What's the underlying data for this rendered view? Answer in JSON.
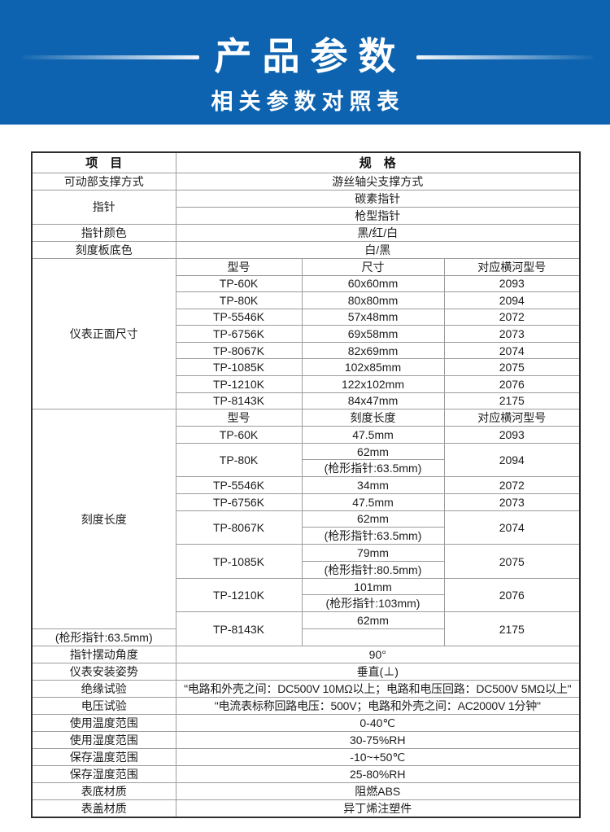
{
  "banner": {
    "title": "产品参数",
    "subtitle": "相关参数对照表"
  },
  "colors": {
    "banner_blue": "#0d63af",
    "table_header_bg": "#cfe8f6",
    "row_band_gray": "#e3e3e3",
    "outer_border": "#2e2e2e",
    "inner_border": "#9c9c9c"
  },
  "table": {
    "rows": [
      {
        "header": true,
        "cells": [
          {
            "t": "项　目",
            "bg": "h"
          },
          {
            "t": "规　格",
            "cs": 3,
            "bg": "h"
          }
        ]
      },
      {
        "cells": [
          {
            "t": "可动部支撑方式"
          },
          {
            "t": "游丝轴尖支撑方式",
            "cs": 3
          }
        ]
      },
      {
        "cells": [
          {
            "t": "指针",
            "rs": 2
          },
          {
            "t": "碳素指针",
            "cs": 3,
            "bg": "g"
          }
        ]
      },
      {
        "cells": [
          {
            "t": "枪型指针",
            "cs": 3
          }
        ]
      },
      {
        "cells": [
          {
            "t": "指针颜色"
          },
          {
            "t": "黑/红/白",
            "cs": 3,
            "bg": "g"
          }
        ]
      },
      {
        "cells": [
          {
            "t": "刻度板底色"
          },
          {
            "t": "白/黑",
            "cs": 3
          }
        ]
      },
      {
        "cells": [
          {
            "t": "仪表正面尺寸",
            "rs": 9
          },
          {
            "t": "型号",
            "bg": "g"
          },
          {
            "t": "尺寸",
            "bg": "g"
          },
          {
            "t": "对应横河型号",
            "bg": "g"
          }
        ]
      },
      {
        "cells": [
          {
            "t": "TP-60K"
          },
          {
            "t": "60x60mm"
          },
          {
            "t": "2093"
          }
        ]
      },
      {
        "cells": [
          {
            "t": "TP-80K",
            "bg": "g"
          },
          {
            "t": "80x80mm",
            "bg": "g"
          },
          {
            "t": "2094",
            "bg": "g"
          }
        ]
      },
      {
        "cells": [
          {
            "t": "TP-5546K"
          },
          {
            "t": "57x48mm"
          },
          {
            "t": "2072"
          }
        ]
      },
      {
        "cells": [
          {
            "t": "TP-6756K",
            "bg": "g"
          },
          {
            "t": "69x58mm",
            "bg": "g"
          },
          {
            "t": "2073",
            "bg": "g"
          }
        ]
      },
      {
        "cells": [
          {
            "t": "TP-8067K"
          },
          {
            "t": "82x69mm"
          },
          {
            "t": "2074"
          }
        ]
      },
      {
        "cells": [
          {
            "t": "TP-1085K",
            "bg": "g"
          },
          {
            "t": "102x85mm",
            "bg": "g"
          },
          {
            "t": "2075",
            "bg": "g"
          }
        ]
      },
      {
        "cells": [
          {
            "t": "TP-1210K"
          },
          {
            "t": "122x102mm"
          },
          {
            "t": "2076"
          }
        ]
      },
      {
        "cells": [
          {
            "t": "TP-8143K",
            "bg": "g"
          },
          {
            "t": "84x47mm",
            "bg": "g"
          },
          {
            "t": "2175",
            "bg": "g"
          }
        ]
      },
      {
        "cells": [
          {
            "t": "刻度长度",
            "rs": 13
          },
          {
            "t": "型号"
          },
          {
            "t": "刻度长度"
          },
          {
            "t": "对应横河型号"
          }
        ]
      },
      {
        "cells": [
          {
            "t": "TP-60K",
            "bg": "g"
          },
          {
            "t": "47.5mm",
            "bg": "g"
          },
          {
            "t": "2093",
            "bg": "g"
          }
        ]
      },
      {
        "cells": [
          {
            "t": "TP-80K",
            "rs": 2
          },
          {
            "t": "62mm"
          },
          {
            "t": "2094",
            "rs": 2
          }
        ]
      },
      {
        "cells": [
          {
            "t": "(枪形指针:63.5mm)",
            "bg": "g"
          }
        ]
      },
      {
        "cells": [
          {
            "t": "TP-5546K"
          },
          {
            "t": "34mm"
          },
          {
            "t": "2072"
          }
        ]
      },
      {
        "cells": [
          {
            "t": "TP-6756K"
          },
          {
            "t": "47.5mm",
            "bg": "g"
          },
          {
            "t": "2073"
          }
        ]
      },
      {
        "cells": [
          {
            "t": "TP-8067K",
            "rs": 2
          },
          {
            "t": "62mm"
          },
          {
            "t": "2074",
            "rs": 2
          }
        ]
      },
      {
        "cells": [
          {
            "t": "(枪形指针:63.5mm)",
            "bg": "g"
          }
        ]
      },
      {
        "cells": [
          {
            "t": "TP-1085K",
            "rs": 2
          },
          {
            "t": "79mm"
          },
          {
            "t": "2075",
            "rs": 2
          }
        ]
      },
      {
        "cells": [
          {
            "t": "(枪形指针:80.5mm)",
            "bg": "g"
          }
        ]
      },
      {
        "cells": [
          {
            "t": "TP-1210K",
            "rs": 2
          },
          {
            "t": "101mm"
          },
          {
            "t": "2076",
            "rs": 2
          }
        ]
      },
      {
        "cells": [
          {
            "t": "(枪形指针:103mm)",
            "bg": "g"
          }
        ]
      },
      {
        "cells": [
          {
            "t": "TP-8143K",
            "rs": 2
          },
          {
            "t": "62mm"
          },
          {
            "t": "2175",
            "rs": 2
          }
        ]
      },
      {
        "cells": [
          {
            "t": "(枪形指针:63.5mm)",
            "bg": "g"
          }
        ]
      },
      {
        "cells": [
          {
            "t": "指针摆动角度"
          },
          {
            "t": "90°",
            "cs": 3
          }
        ]
      },
      {
        "cells": [
          {
            "t": "仪表安装姿势",
            "bg": "g"
          },
          {
            "t": "垂直(⊥)",
            "cs": 3,
            "bg": "g"
          }
        ]
      },
      {
        "cells": [
          {
            "t": "绝缘试验"
          },
          {
            "t": "\"电路和外壳之间：DC500V 10MΩ以上；电路和电压回路：DC500V 5MΩ以上\"",
            "cs": 3,
            "sm": true
          }
        ]
      },
      {
        "cells": [
          {
            "t": "电压试验",
            "bg": "g"
          },
          {
            "t": "\"电流表标称回路电压：500V；电路和外壳之间：AC2000V 1分钟\"",
            "cs": 3,
            "bg": "g",
            "sm": true
          }
        ]
      },
      {
        "cells": [
          {
            "t": "使用温度范围"
          },
          {
            "t": "0-40℃",
            "cs": 3
          }
        ]
      },
      {
        "cells": [
          {
            "t": "使用湿度范围",
            "bg": "g"
          },
          {
            "t": "30-75%RH",
            "cs": 3,
            "bg": "g"
          }
        ]
      },
      {
        "cells": [
          {
            "t": "保存温度范围"
          },
          {
            "t": "-10~+50℃",
            "cs": 3
          }
        ]
      },
      {
        "cells": [
          {
            "t": "保存湿度范围",
            "bg": "g"
          },
          {
            "t": "25-80%RH",
            "cs": 3,
            "bg": "g"
          }
        ]
      },
      {
        "cells": [
          {
            "t": "表底材质"
          },
          {
            "t": "阻燃ABS",
            "cs": 3
          }
        ]
      },
      {
        "cells": [
          {
            "t": "表盖材质",
            "bg": "g"
          },
          {
            "t": "异丁烯注塑件",
            "cs": 3,
            "bg": "g"
          }
        ]
      }
    ]
  }
}
